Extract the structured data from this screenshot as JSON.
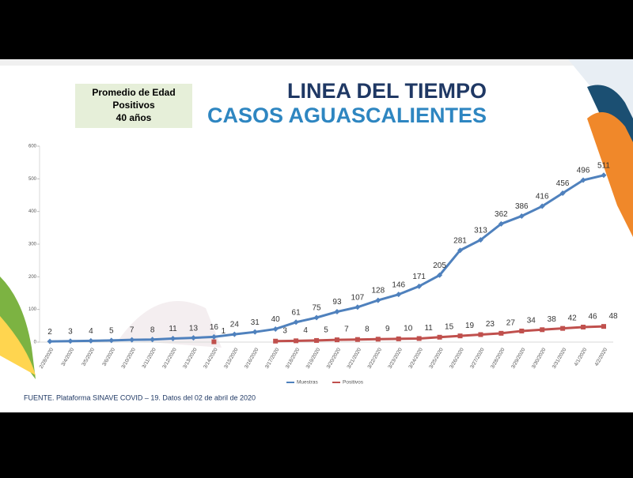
{
  "chart_data": {
    "type": "line",
    "title": "LINEA DEL TIEMPO",
    "subtitle": "CASOS AGUASCALIENTES",
    "categories": [
      "2/28/2020",
      "3/4/2020",
      "3/5/2020",
      "3/6/2020",
      "3/10/2020",
      "3/11/2020",
      "3/12/2020",
      "3/13/2020",
      "3/14/2020",
      "3/15/2020",
      "3/16/2020",
      "3/17/2020",
      "3/18/2020",
      "3/19/2020",
      "3/20/2020",
      "3/21/2020",
      "3/22/2020",
      "3/23/2020",
      "3/24/2020",
      "3/25/2020",
      "3/26/2020",
      "3/27/2020",
      "3/28/2020",
      "3/29/2020",
      "3/30/2020",
      "3/31/2020",
      "4/1/2020",
      "4/2/2020"
    ],
    "series": [
      {
        "name": "Muestras",
        "color": "#4f81bd",
        "marker": "diamond",
        "values": [
          2,
          3,
          4,
          5,
          7,
          8,
          11,
          13,
          16,
          24,
          31,
          40,
          61,
          75,
          93,
          107,
          128,
          146,
          171,
          205,
          281,
          313,
          362,
          386,
          416,
          456,
          496,
          511
        ]
      },
      {
        "name": "Positivos",
        "color": "#c0504d",
        "marker": "square",
        "values": [
          null,
          null,
          null,
          null,
          null,
          null,
          null,
          null,
          1,
          null,
          null,
          3,
          4,
          5,
          7,
          8,
          9,
          10,
          11,
          15,
          19,
          23,
          27,
          34,
          38,
          42,
          46,
          48
        ]
      }
    ],
    "ylim": [
      0,
      600
    ],
    "yticks": [
      0,
      100,
      200,
      300,
      400,
      500,
      600
    ],
    "grid": false,
    "legend": "bottom"
  },
  "slide": {
    "box": [
      "Promedio de Edad",
      "Positivos",
      "40 años"
    ],
    "source": "FUENTE. Plataforma SINAVE COVID – 19. Datos del 02 de abril de 2020"
  }
}
